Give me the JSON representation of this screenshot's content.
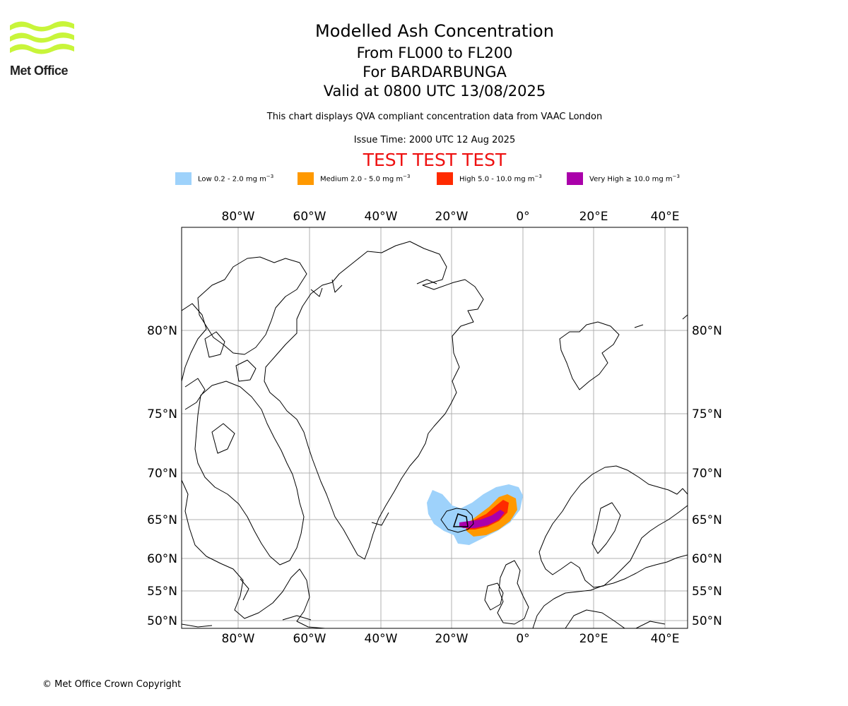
{
  "header": {
    "title": "Modelled Ash Concentration",
    "levels": "From FL000 to FL200",
    "volcano": "For BARDARBUNGA",
    "valid": "Valid at 0800 UTC 13/08/2025",
    "description": "This chart displays QVA compliant concentration data from VAAC London",
    "issue_time": "Issue Time: 2000 UTC 12 Aug 2025",
    "test_banner": "TEST TEST TEST"
  },
  "logo": {
    "text": "Met Office",
    "icon": "met-office-wave-logo",
    "color": "#c8f53a"
  },
  "legend": [
    {
      "label": "Low 0.2 - 2.0 mg m",
      "exp": "−3",
      "color": "#9ed2fb"
    },
    {
      "label": "Medium 2.0 - 5.0 mg m",
      "exp": "−3",
      "color": "#ff9900"
    },
    {
      "label": "High 5.0 - 10.0 mg m",
      "exp": "−3",
      "color": "#ff2a00"
    },
    {
      "label": "Very High  ≥  10.0 mg m",
      "exp": "−3",
      "color": "#aa00aa"
    }
  ],
  "map": {
    "lon_labels": [
      "80°W",
      "60°W",
      "40°W",
      "20°W",
      "0°",
      "20°E",
      "40°E"
    ],
    "lat_labels": [
      "80°N",
      "75°N",
      "70°N",
      "65°N",
      "60°N",
      "55°N",
      "50°N"
    ],
    "projection": "polar-stereographic",
    "gridlines": true,
    "coastline_color": "#000000",
    "grid_color": "#b0b0b0"
  },
  "footer": {
    "copyright": "© Met Office Crown Copyright"
  }
}
